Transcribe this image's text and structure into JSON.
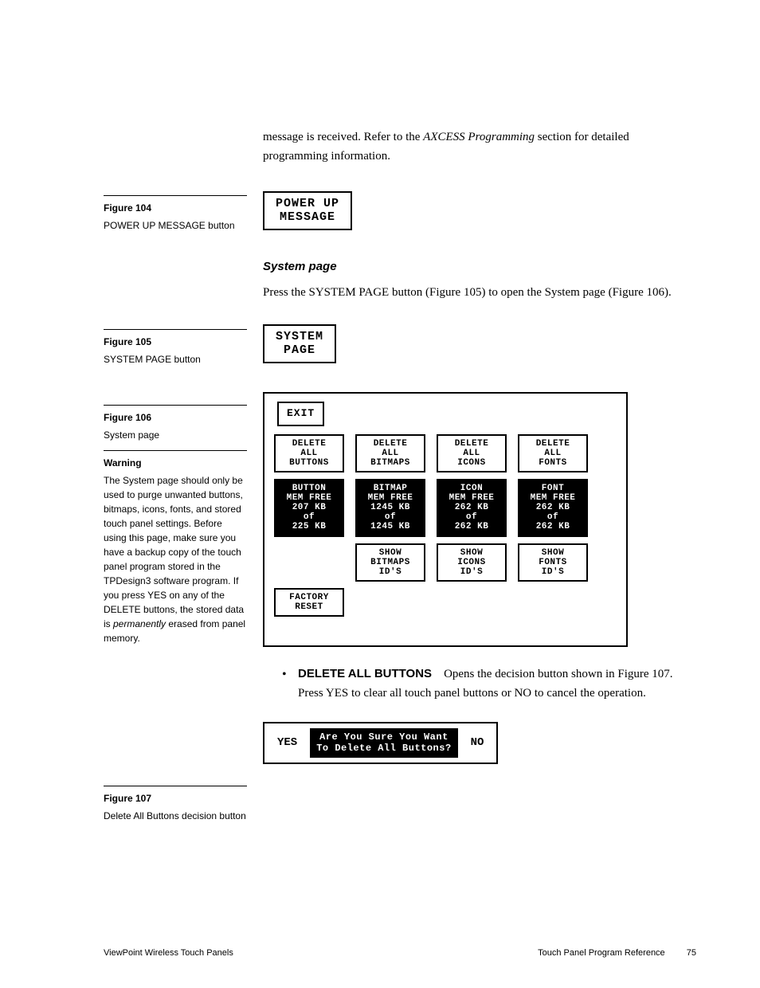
{
  "intro": {
    "line1_a": "message is received. Refer to the ",
    "line1_em": "AXCESS Programming",
    "line1_b": " section for detailed programming information."
  },
  "fig104": {
    "title": "Figure 104",
    "caption": "POWER UP MESSAGE button",
    "btn_l1": "POWER UP",
    "btn_l2": "MESSAGE"
  },
  "section": {
    "heading": "System page",
    "body": "Press the SYSTEM PAGE button (Figure 105) to open the System page (Figure 106)."
  },
  "fig105": {
    "title": "Figure 105",
    "caption": "SYSTEM PAGE button",
    "btn_l1": "SYSTEM",
    "btn_l2": "PAGE"
  },
  "fig106": {
    "title": "Figure 106",
    "caption": "System page"
  },
  "warning": {
    "title": "Warning",
    "body_a": "The System page should only be used to purge unwanted buttons, bitmaps, icons, fonts, and stored touch panel settings. Before using this page, make sure you have a backup copy of the touch panel program stored in the TPDesign3 software program. If you press YES on any of the DELETE buttons, the stored data is ",
    "body_em": "permanently",
    "body_b": " erased from panel memory."
  },
  "panel": {
    "exit": "EXIT",
    "row1": {
      "c1": "DELETE\nALL\nBUTTONS",
      "c2": "DELETE\nALL\nBITMAPS",
      "c3": "DELETE\nALL\nICONS",
      "c4": "DELETE\nALL\nFONTS"
    },
    "row2": {
      "c1": "BUTTON\nMEM FREE\n207 KB\nof\n225 KB",
      "c2": "BITMAP\nMEM FREE\n1245 KB\nof\n1245 KB",
      "c3": "ICON\nMEM FREE\n262 KB\nof\n262 KB",
      "c4": "FONT\nMEM FREE\n262 KB\nof\n262 KB"
    },
    "row3": {
      "c2": "SHOW\nBITMAPS\nID'S",
      "c3": "SHOW\nICONS\nID'S",
      "c4": "SHOW\nFONTS\nID'S"
    },
    "factory": "FACTORY\nRESET"
  },
  "bullet": {
    "strong": "DELETE ALL BUTTONS",
    "rest": "Opens the decision button shown in Figure 107. Press YES to clear all touch panel buttons or NO to cancel the operation."
  },
  "fig107": {
    "title": "Figure 107",
    "caption": "Delete All Buttons decision button",
    "yes": "YES",
    "no": "NO",
    "msg_l1": "Are You Sure You Want",
    "msg_l2": "To Delete All Buttons?"
  },
  "footer": {
    "left": "ViewPoint Wireless Touch Panels",
    "right": "Touch Panel Program Reference",
    "page": "75"
  }
}
